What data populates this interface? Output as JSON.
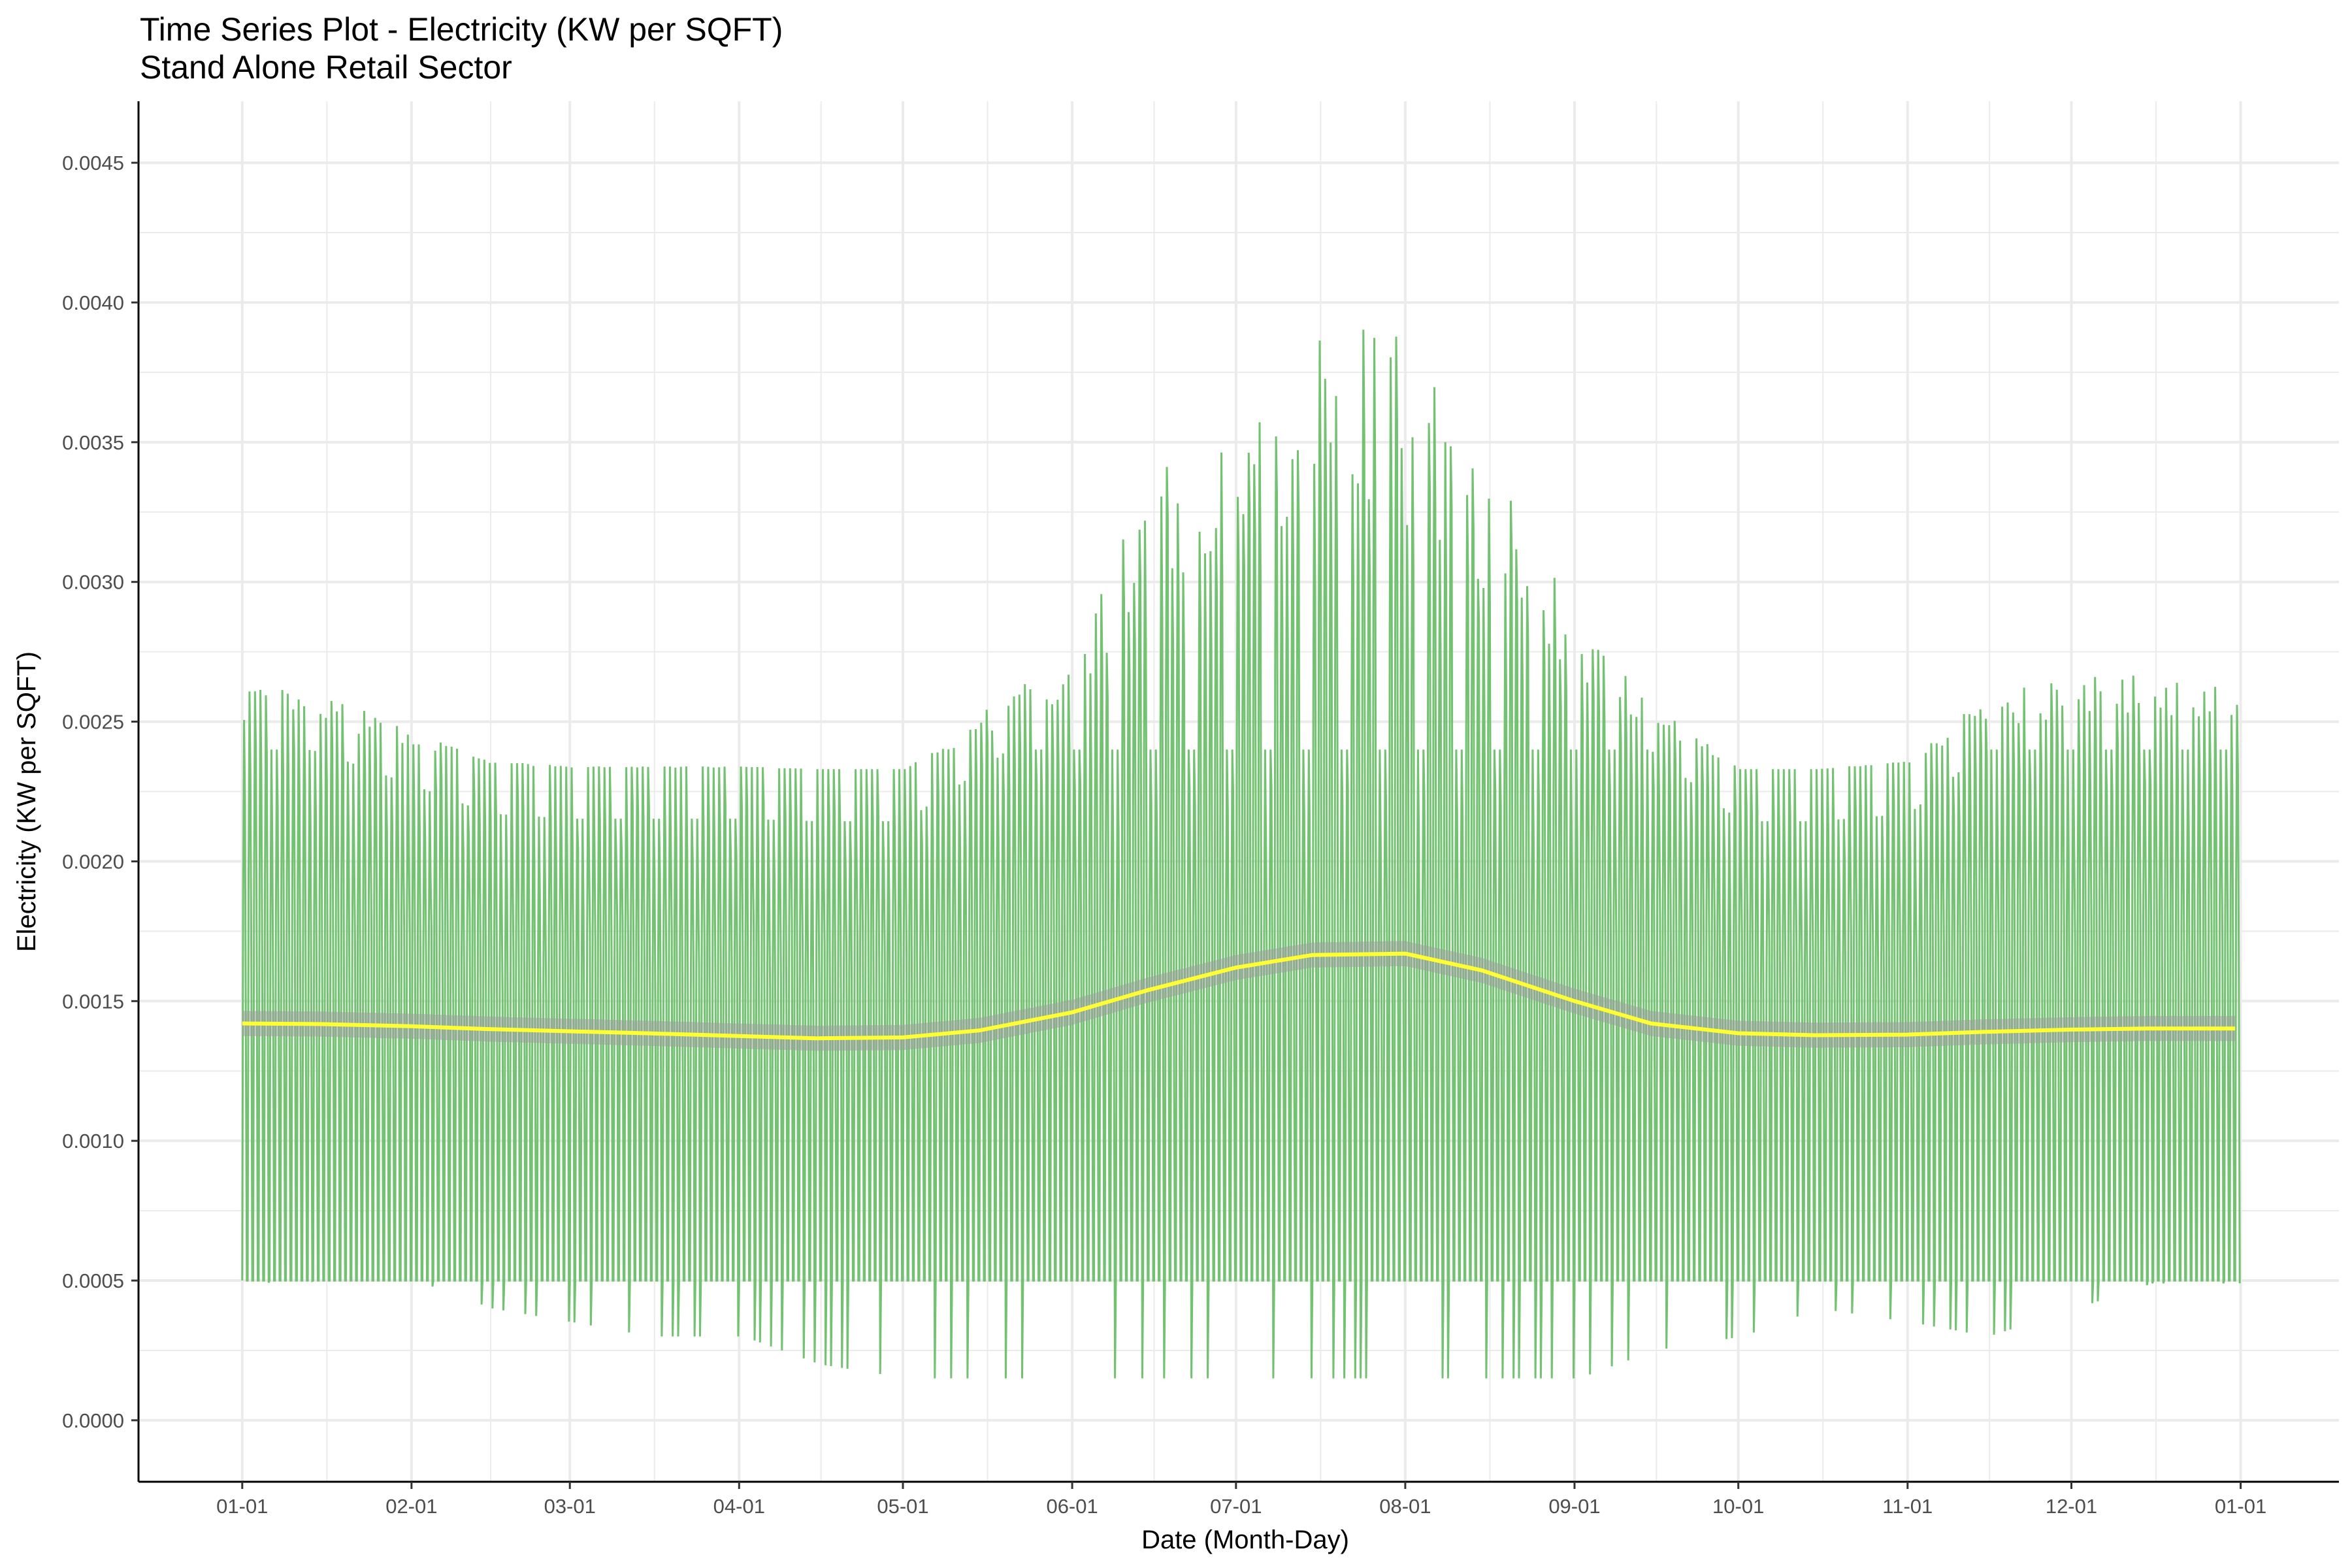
{
  "chart_data": {
    "type": "line",
    "title": "Time Series Plot - Electricity (KW per SQFT)",
    "subtitle": "Stand Alone Retail Sector",
    "xlabel": "Date (Month-Day)",
    "ylabel": "Electricity (KW per SQFT)",
    "ylim": [
      -0.00022,
      0.00472
    ],
    "xlim": [
      "12-13",
      "01-19"
    ],
    "grid": true,
    "x_ticks": [
      "01-01",
      "02-01",
      "03-01",
      "04-01",
      "05-01",
      "06-01",
      "07-01",
      "08-01",
      "09-01",
      "10-01",
      "11-01",
      "12-01",
      "01-01"
    ],
    "y_ticks": [
      "0.0000",
      "0.0005",
      "0.0010",
      "0.0015",
      "0.0020",
      "0.0025",
      "0.0030",
      "0.0035",
      "0.0040",
      "0.0045"
    ],
    "colors": {
      "raw_series": "#6abf69",
      "smooth_line": "#ffff33",
      "confidence_band": "#9e9e9e",
      "grid": "#ebebeb",
      "axis": "#000000"
    },
    "series": [
      {
        "description": "Hourly electricity usage (daily peak / off-peak envelope)",
        "x": [
          "01-01",
          "01-15",
          "02-01",
          "02-15",
          "03-01",
          "03-15",
          "04-01",
          "04-15",
          "05-01",
          "05-15",
          "06-01",
          "06-15",
          "07-01",
          "07-15",
          "08-01",
          "08-15",
          "09-01",
          "09-15",
          "10-01",
          "10-15",
          "11-01",
          "11-15",
          "12-01",
          "12-15",
          "12-31"
        ],
        "daily_peak": [
          0.00265,
          0.0026,
          0.00247,
          0.00236,
          0.00234,
          0.00234,
          0.00234,
          0.00233,
          0.00233,
          0.00253,
          0.0028,
          0.00345,
          0.0037,
          0.00395,
          0.0039,
          0.0035,
          0.0029,
          0.0026,
          0.00233,
          0.00233,
          0.00236,
          0.00261,
          0.00266,
          0.00267,
          0.00266
        ],
        "daily_min": [
          0.00049,
          0.0005,
          0.0005,
          0.0004,
          0.00035,
          0.0003,
          0.0003,
          0.0002,
          0.00015,
          0.00015,
          0.00015,
          0.00015,
          0.00015,
          0.00015,
          0.00015,
          0.00015,
          0.00015,
          0.00025,
          0.0003,
          0.0004,
          0.00035,
          0.0003,
          0.0004,
          0.00049,
          0.00049
        ]
      },
      {
        "description": "Smoothed trend",
        "x": [
          "01-01",
          "01-15",
          "02-01",
          "02-15",
          "03-01",
          "03-15",
          "04-01",
          "04-15",
          "05-01",
          "05-15",
          "06-01",
          "06-15",
          "07-01",
          "07-15",
          "08-01",
          "08-15",
          "09-01",
          "09-15",
          "10-01",
          "10-15",
          "11-01",
          "11-15",
          "12-01",
          "12-15",
          "12-31"
        ],
        "values": [
          0.00142,
          0.001418,
          0.00141,
          0.0014,
          0.001392,
          0.001385,
          0.001375,
          0.001367,
          0.00137,
          0.001395,
          0.00146,
          0.00154,
          0.00162,
          0.001665,
          0.00167,
          0.00161,
          0.0015,
          0.00142,
          0.001385,
          0.001378,
          0.00138,
          0.00139,
          0.001398,
          0.001402,
          0.001402
        ]
      }
    ]
  }
}
